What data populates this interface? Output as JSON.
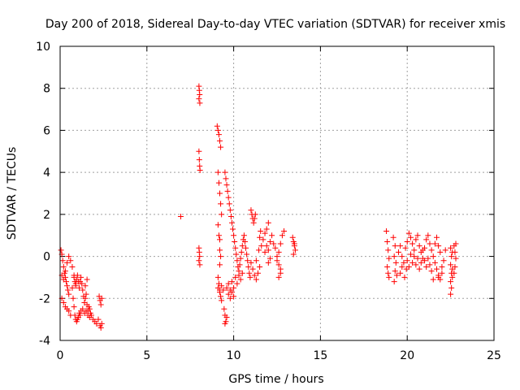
{
  "chart_data": {
    "type": "scatter",
    "title": "Day 200 of 2018, Sidereal Day-to-day VTEC variation (SDTVAR) for receiver xmis",
    "xlabel": "GPS time / hours",
    "ylabel": "SDTVAR / TECUs",
    "xlim": [
      0,
      25
    ],
    "ylim": [
      -4,
      10
    ],
    "xticks": [
      0,
      5,
      10,
      15,
      20,
      25
    ],
    "yticks": [
      -4,
      -2,
      0,
      2,
      4,
      6,
      8,
      10
    ],
    "grid": true,
    "marker": "+",
    "color": "#ff0000",
    "series": [
      {
        "name": "SDTVAR",
        "points": [
          [
            0.05,
            0.3
          ],
          [
            0.1,
            0.1
          ],
          [
            0.15,
            -0.2
          ],
          [
            0.2,
            -0.5
          ],
          [
            0.25,
            -0.8
          ],
          [
            0.3,
            -1.0
          ],
          [
            0.35,
            -1.2
          ],
          [
            0.4,
            -1.4
          ],
          [
            0.45,
            -1.6
          ],
          [
            0.5,
            -1.8
          ],
          [
            0.1,
            -0.9
          ],
          [
            0.2,
            -1.1
          ],
          [
            0.3,
            -0.7
          ],
          [
            0.4,
            -0.3
          ],
          [
            0.5,
            0.0
          ],
          [
            0.6,
            -0.2
          ],
          [
            0.7,
            -0.5
          ],
          [
            0.8,
            -0.9
          ],
          [
            0.9,
            -1.3
          ],
          [
            0.1,
            -2.0
          ],
          [
            0.2,
            -2.2
          ],
          [
            0.3,
            -2.4
          ],
          [
            0.4,
            -2.5
          ],
          [
            0.5,
            -2.6
          ],
          [
            0.6,
            -2.8
          ],
          [
            0.7,
            -1.5
          ],
          [
            0.75,
            -2.0
          ],
          [
            0.8,
            -2.4
          ],
          [
            0.85,
            -2.8
          ],
          [
            0.9,
            -3.0
          ],
          [
            0.95,
            -3.1
          ],
          [
            1.0,
            -3.0
          ],
          [
            1.05,
            -2.9
          ],
          [
            1.1,
            -2.7
          ],
          [
            1.15,
            -2.8
          ],
          [
            0.8,
            -1.0
          ],
          [
            0.85,
            -1.2
          ],
          [
            0.9,
            -1.4
          ],
          [
            0.95,
            -1.1
          ],
          [
            1.0,
            -0.9
          ],
          [
            1.05,
            -1.2
          ],
          [
            1.1,
            -1.5
          ],
          [
            1.15,
            -1.2
          ],
          [
            1.2,
            -1.0
          ],
          [
            1.25,
            -1.3
          ],
          [
            1.3,
            -1.6
          ],
          [
            1.35,
            -1.9
          ],
          [
            1.4,
            -2.2
          ],
          [
            1.45,
            -2.0
          ],
          [
            1.5,
            -1.8
          ],
          [
            1.55,
            -2.3
          ],
          [
            1.6,
            -2.6
          ],
          [
            1.65,
            -2.4
          ],
          [
            1.7,
            -2.5
          ],
          [
            1.75,
            -2.7
          ],
          [
            1.2,
            -2.6
          ],
          [
            1.3,
            -2.5
          ],
          [
            1.4,
            -2.7
          ],
          [
            1.5,
            -2.6
          ],
          [
            1.6,
            -2.8
          ],
          [
            1.7,
            -2.9
          ],
          [
            1.8,
            -2.8
          ],
          [
            1.9,
            -3.0
          ],
          [
            2.0,
            -3.1
          ],
          [
            2.1,
            -3.2
          ],
          [
            2.2,
            -3.0
          ],
          [
            2.3,
            -3.3
          ],
          [
            2.35,
            -3.4
          ],
          [
            2.4,
            -3.2
          ],
          [
            2.25,
            -1.9
          ],
          [
            2.3,
            -2.1
          ],
          [
            2.35,
            -2.3
          ],
          [
            2.4,
            -2.0
          ],
          [
            1.45,
            -1.4
          ],
          [
            1.55,
            -1.1
          ],
          [
            6.95,
            1.9
          ],
          [
            8.0,
            8.1
          ],
          [
            8.02,
            7.9
          ],
          [
            8.04,
            7.7
          ],
          [
            8.0,
            7.5
          ],
          [
            8.05,
            7.3
          ],
          [
            8.0,
            5.0
          ],
          [
            8.02,
            4.6
          ],
          [
            8.04,
            4.3
          ],
          [
            8.06,
            4.1
          ],
          [
            8.0,
            0.4
          ],
          [
            8.02,
            0.2
          ],
          [
            8.04,
            0.0
          ],
          [
            8.0,
            -0.2
          ],
          [
            8.05,
            -0.4
          ],
          [
            9.05,
            6.2
          ],
          [
            9.1,
            6.0
          ],
          [
            9.15,
            5.8
          ],
          [
            9.2,
            5.5
          ],
          [
            9.25,
            5.2
          ],
          [
            9.1,
            4.0
          ],
          [
            9.15,
            3.5
          ],
          [
            9.2,
            3.0
          ],
          [
            9.25,
            2.5
          ],
          [
            9.3,
            2.0
          ],
          [
            9.1,
            1.5
          ],
          [
            9.15,
            1.0
          ],
          [
            9.2,
            0.8
          ],
          [
            9.2,
            0.3
          ],
          [
            9.25,
            0.0
          ],
          [
            9.2,
            -0.4
          ],
          [
            9.1,
            -1.0
          ],
          [
            9.15,
            -1.3
          ],
          [
            9.2,
            -1.6
          ],
          [
            9.25,
            -1.9
          ],
          [
            9.3,
            -2.1
          ],
          [
            9.1,
            -1.5
          ],
          [
            9.2,
            -1.7
          ],
          [
            9.3,
            -1.4
          ],
          [
            9.4,
            -1.6
          ],
          [
            9.45,
            -2.5
          ],
          [
            9.5,
            -2.8
          ],
          [
            9.55,
            -3.1
          ],
          [
            9.6,
            -2.9
          ],
          [
            9.5,
            -3.2
          ],
          [
            9.5,
            4.0
          ],
          [
            9.55,
            3.7
          ],
          [
            9.6,
            3.4
          ],
          [
            9.65,
            3.1
          ],
          [
            9.7,
            2.8
          ],
          [
            9.75,
            2.5
          ],
          [
            9.8,
            2.2
          ],
          [
            9.85,
            1.9
          ],
          [
            9.9,
            1.6
          ],
          [
            9.95,
            1.3
          ],
          [
            10.0,
            1.0
          ],
          [
            10.05,
            0.7
          ],
          [
            10.1,
            0.4
          ],
          [
            10.15,
            0.1
          ],
          [
            10.2,
            -0.2
          ],
          [
            10.25,
            -0.5
          ],
          [
            10.3,
            -0.7
          ],
          [
            10.35,
            -0.4
          ],
          [
            10.4,
            -0.1
          ],
          [
            10.45,
            0.2
          ],
          [
            10.5,
            0.5
          ],
          [
            10.55,
            0.8
          ],
          [
            10.6,
            1.0
          ],
          [
            10.65,
            0.7
          ],
          [
            10.7,
            0.4
          ],
          [
            10.75,
            0.1
          ],
          [
            10.8,
            -0.2
          ],
          [
            10.85,
            -0.5
          ],
          [
            10.9,
            -0.8
          ],
          [
            10.95,
            -1.0
          ],
          [
            9.6,
            -1.5
          ],
          [
            9.7,
            -1.3
          ],
          [
            9.8,
            -1.6
          ],
          [
            9.9,
            -1.2
          ],
          [
            10.0,
            -1.5
          ],
          [
            10.1,
            -1.0
          ],
          [
            10.2,
            -1.3
          ],
          [
            10.3,
            -0.9
          ],
          [
            10.4,
            -1.1
          ],
          [
            10.5,
            -0.8
          ],
          [
            9.7,
            -1.8
          ],
          [
            9.8,
            -2.0
          ],
          [
            9.9,
            -1.7
          ],
          [
            10.0,
            -1.9
          ],
          [
            11.0,
            2.2
          ],
          [
            11.05,
            2.0
          ],
          [
            11.1,
            1.8
          ],
          [
            11.15,
            1.6
          ],
          [
            11.2,
            1.8
          ],
          [
            11.25,
            2.0
          ],
          [
            11.0,
            -0.3
          ],
          [
            11.1,
            -0.6
          ],
          [
            11.2,
            -0.9
          ],
          [
            11.3,
            -1.1
          ],
          [
            11.4,
            -0.8
          ],
          [
            11.5,
            -0.5
          ],
          [
            11.3,
            -0.2
          ],
          [
            11.45,
            0.3
          ],
          [
            11.5,
            0.9
          ],
          [
            11.55,
            1.2
          ],
          [
            11.6,
            0.5
          ],
          [
            11.7,
            0.8
          ],
          [
            11.8,
            1.1
          ],
          [
            11.9,
            1.3
          ],
          [
            12.0,
            1.6
          ],
          [
            11.8,
            0.2
          ],
          [
            11.9,
            0.5
          ],
          [
            12.0,
            0.3
          ],
          [
            12.1,
            0.7
          ],
          [
            12.2,
            1.0
          ],
          [
            12.3,
            0.6
          ],
          [
            12.4,
            0.4
          ],
          [
            12.5,
            0.0
          ],
          [
            12.6,
            -0.4
          ],
          [
            12.7,
            -0.8
          ],
          [
            12.5,
            -0.2
          ],
          [
            12.6,
            0.2
          ],
          [
            12.7,
            0.6
          ],
          [
            12.8,
            1.0
          ],
          [
            12.9,
            1.2
          ],
          [
            12.0,
            -0.3
          ],
          [
            12.1,
            -0.1
          ],
          [
            12.6,
            -1.0
          ],
          [
            12.7,
            -0.6
          ],
          [
            13.4,
            0.9
          ],
          [
            13.45,
            0.7
          ],
          [
            13.5,
            0.5
          ],
          [
            13.55,
            0.3
          ],
          [
            13.45,
            0.1
          ],
          [
            13.5,
            0.6
          ],
          [
            18.8,
            1.2
          ],
          [
            18.85,
            0.7
          ],
          [
            18.9,
            0.3
          ],
          [
            18.95,
            -0.1
          ],
          [
            18.85,
            -0.5
          ],
          [
            18.9,
            -0.8
          ],
          [
            18.95,
            -1.0
          ],
          [
            19.2,
            0.9
          ],
          [
            19.3,
            0.5
          ],
          [
            19.25,
            0.0
          ],
          [
            19.35,
            -0.3
          ],
          [
            19.3,
            -0.7
          ],
          [
            19.25,
            -1.2
          ],
          [
            19.4,
            -0.9
          ],
          [
            19.5,
            0.2
          ],
          [
            19.6,
            0.5
          ],
          [
            19.7,
            0.0
          ],
          [
            19.8,
            -0.3
          ],
          [
            19.9,
            0.4
          ],
          [
            20.0,
            0.7
          ],
          [
            20.1,
            1.1
          ],
          [
            20.2,
            0.9
          ],
          [
            20.3,
            0.6
          ],
          [
            20.4,
            0.3
          ],
          [
            20.5,
            0.8
          ],
          [
            20.6,
            1.0
          ],
          [
            20.7,
            0.5
          ],
          [
            20.8,
            0.2
          ],
          [
            20.9,
            -0.1
          ],
          [
            21.0,
            0.4
          ],
          [
            21.1,
            0.8
          ],
          [
            21.2,
            1.0
          ],
          [
            21.3,
            0.6
          ],
          [
            21.4,
            0.3
          ],
          [
            21.5,
            0.0
          ],
          [
            21.6,
            0.6
          ],
          [
            21.7,
            0.9
          ],
          [
            21.8,
            0.5
          ],
          [
            21.9,
            0.2
          ],
          [
            20.0,
            -0.2
          ],
          [
            20.1,
            -0.5
          ],
          [
            20.2,
            0.1
          ],
          [
            20.3,
            -0.3
          ],
          [
            20.4,
            0.0
          ],
          [
            20.5,
            -0.4
          ],
          [
            20.6,
            -0.1
          ],
          [
            20.7,
            -0.6
          ],
          [
            20.8,
            -0.3
          ],
          [
            20.9,
            0.3
          ],
          [
            21.0,
            -0.2
          ],
          [
            21.1,
            -0.5
          ],
          [
            21.2,
            -0.1
          ],
          [
            21.3,
            -0.4
          ],
          [
            21.4,
            -0.7
          ],
          [
            21.6,
            -0.3
          ],
          [
            21.7,
            -0.6
          ],
          [
            21.8,
            -0.9
          ],
          [
            21.9,
            -1.1
          ],
          [
            22.0,
            -0.5
          ],
          [
            22.1,
            -0.2
          ],
          [
            22.2,
            0.3
          ],
          [
            21.5,
            -1.1
          ],
          [
            22.0,
            -0.8
          ],
          [
            21.8,
            -1.0
          ],
          [
            22.5,
            0.4
          ],
          [
            22.55,
            0.0
          ],
          [
            22.5,
            -0.4
          ],
          [
            22.55,
            -0.8
          ],
          [
            22.5,
            -1.2
          ],
          [
            22.55,
            -1.5
          ],
          [
            22.5,
            -1.8
          ],
          [
            22.6,
            -1.0
          ],
          [
            22.6,
            0.2
          ],
          [
            22.6,
            -0.6
          ],
          [
            22.7,
            0.5
          ],
          [
            22.75,
            0.2
          ],
          [
            22.8,
            -0.1
          ],
          [
            22.75,
            -0.5
          ],
          [
            22.7,
            -0.8
          ],
          [
            22.8,
            0.6
          ],
          [
            19.6,
            -0.8
          ],
          [
            19.7,
            -0.5
          ],
          [
            19.85,
            -1.0
          ],
          [
            19.95,
            -0.6
          ]
        ]
      }
    ]
  }
}
